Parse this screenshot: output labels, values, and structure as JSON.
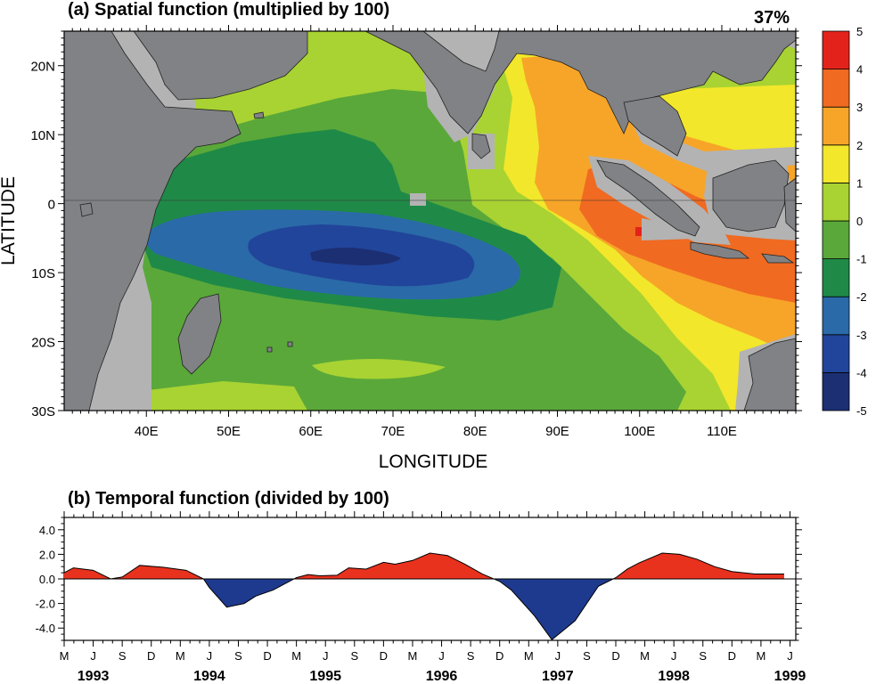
{
  "panel_a": {
    "title": "(a) Spatial function (multiplied by 100)",
    "percent": "37%",
    "xlabel": "LONGITUDE",
    "ylabel": "LATITUDE",
    "lon_ticks": [
      "40E",
      "50E",
      "60E",
      "70E",
      "80E",
      "90E",
      "100E",
      "110E"
    ],
    "lat_ticks": [
      "20N",
      "10N",
      "0",
      "10S",
      "20S",
      "30S"
    ],
    "colorbar_labels": [
      "5",
      "4",
      "3",
      "2",
      "1",
      "0",
      "-1",
      "-2",
      "-3",
      "-4",
      "-5"
    ],
    "colors": {
      "land": "#808285",
      "missing": "#b3b3b3",
      "levels": [
        "#1c2f73",
        "#21459a",
        "#2a6aa8",
        "#1f8a47",
        "#5aa83a",
        "#a8d332",
        "#f2e72a",
        "#f7a528",
        "#f06a21",
        "#e3231b"
      ]
    }
  },
  "panel_b": {
    "title": "(b) Temporal function (divided by 100)",
    "y_ticks": [
      "4.0",
      "2.0",
      "0.0",
      "-2.0",
      "-4.0"
    ],
    "month_letters": [
      "M",
      "J",
      "S",
      "D",
      "M",
      "J",
      "S",
      "D",
      "M",
      "J",
      "S",
      "D",
      "M",
      "J",
      "S",
      "D",
      "M",
      "J",
      "S",
      "D",
      "M",
      "J",
      "S",
      "D",
      "M",
      "J"
    ],
    "years": [
      "1993",
      "1994",
      "1995",
      "1996",
      "1997",
      "1998",
      "1999"
    ],
    "colors": {
      "positive": "#e8321e",
      "negative": "#1e3a8f"
    }
  },
  "chart_data": [
    {
      "type": "heatmap",
      "title": "(a) Spatial function (multiplied by 100)",
      "annotation": "37%",
      "xlabel": "LONGITUDE",
      "ylabel": "LATITUDE",
      "xlim": [
        30,
        119
      ],
      "ylim": [
        -30,
        25
      ],
      "x_ticks": [
        40,
        50,
        60,
        70,
        80,
        90,
        100,
        110
      ],
      "y_ticks": [
        20,
        10,
        0,
        -10,
        -20,
        -30
      ],
      "colorbar": [
        -5,
        -4,
        -3,
        -2,
        -1,
        0,
        1,
        2,
        3,
        4,
        5
      ],
      "field_features": [
        {
          "name": "negative core",
          "lon": 64,
          "lat": -7,
          "value": -4.5
        },
        {
          "name": "negative band",
          "lon_range": [
            42,
            86
          ],
          "lat_range": [
            -12,
            -3
          ],
          "value_range": [
            -3,
            -2
          ]
        },
        {
          "name": "positive core",
          "lon": 103,
          "lat": -5,
          "value": 3.5
        },
        {
          "name": "positive maximum",
          "lon": 100.3,
          "lat": -4,
          "value": 4.5
        }
      ]
    },
    {
      "type": "area",
      "title": "(b) Temporal function (divided by 100)",
      "x_unit": "year",
      "ylim": [
        -5,
        5
      ],
      "y_ticks": [
        4.0,
        2.0,
        0.0,
        -2.0,
        -4.0
      ],
      "series": [
        {
          "x": [
            1993.0,
            1993.08,
            1993.25,
            1993.4,
            1993.5,
            1993.65,
            1993.85,
            1994.05,
            1994.2,
            1994.25,
            1994.4,
            1994.55,
            1994.65,
            1994.8,
            1995.0,
            1995.1,
            1995.2,
            1995.35,
            1995.45,
            1995.6,
            1995.75,
            1995.85,
            1996.0,
            1996.15,
            1996.3,
            1996.45,
            1996.6,
            1996.75,
            1996.85,
            1997.05,
            1997.2,
            1997.4,
            1997.6,
            1997.75,
            1997.85,
            1997.95,
            1998.15,
            1998.3,
            1998.45,
            1998.6,
            1998.75,
            1998.95,
            1999.1,
            1999.2
          ],
          "values": [
            0.5,
            0.9,
            0.7,
            0.0,
            0.15,
            1.1,
            0.95,
            0.7,
            0.0,
            -0.7,
            -2.3,
            -2.0,
            -1.4,
            -0.9,
            0.1,
            0.35,
            0.25,
            0.3,
            0.9,
            0.8,
            1.35,
            1.2,
            1.5,
            2.1,
            1.9,
            1.2,
            0.4,
            -0.2,
            -0.9,
            -3.0,
            -4.95,
            -3.4,
            -0.6,
            0.1,
            0.8,
            1.3,
            2.1,
            2.0,
            1.6,
            1.0,
            0.6,
            0.4,
            0.4,
            0.4
          ]
        }
      ]
    }
  ]
}
